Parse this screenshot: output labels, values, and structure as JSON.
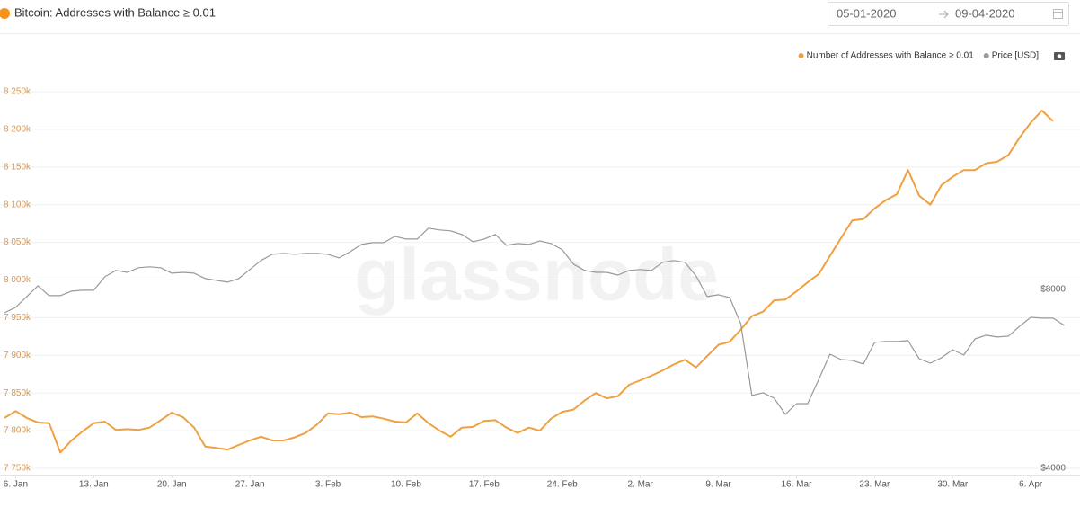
{
  "chart_data": {
    "type": "line",
    "title": "Bitcoin: Addresses with Balance ≥ 0.01",
    "date_from": "05-01-2020",
    "date_to": "09-04-2020",
    "watermark": "glassnode",
    "categories": [
      null,
      "6. Jan",
      null,
      null,
      null,
      null,
      null,
      null,
      "13. Jan",
      null,
      null,
      null,
      null,
      null,
      null,
      "20. Jan",
      null,
      null,
      null,
      null,
      null,
      null,
      "27. Jan",
      null,
      null,
      null,
      null,
      null,
      null,
      "3. Feb",
      null,
      null,
      null,
      null,
      null,
      null,
      "10. Feb",
      null,
      null,
      null,
      null,
      null,
      null,
      "17. Feb",
      null,
      null,
      null,
      null,
      null,
      null,
      "24. Feb",
      null,
      null,
      null,
      null,
      null,
      null,
      "2. Mar",
      null,
      null,
      null,
      null,
      null,
      null,
      "9. Mar",
      null,
      null,
      null,
      null,
      null,
      null,
      "16. Mar",
      null,
      null,
      null,
      null,
      null,
      null,
      "23. Mar",
      null,
      null,
      null,
      null,
      null,
      null,
      "30. Mar",
      null,
      null,
      null,
      null,
      null,
      null,
      "6. Apr",
      null,
      null,
      null
    ],
    "series": [
      {
        "name": "Number of Addresses with Balance ≥ 0.01",
        "color": "#f0a040",
        "axis": "y",
        "values": [
          7817000,
          7826000,
          7817000,
          7811000,
          7810000,
          7771000,
          7787000,
          7799000,
          7810000,
          7812000,
          7801000,
          7802000,
          7801000,
          7804000,
          7814000,
          7824000,
          7818000,
          7804000,
          7779000,
          7777000,
          7775000,
          7781000,
          7787000,
          7792000,
          7787000,
          7787000,
          7791000,
          7797000,
          7808000,
          7823000,
          7822000,
          7824000,
          7818000,
          7819000,
          7816000,
          7812000,
          7811000,
          7823000,
          7810000,
          7800000,
          7792000,
          7804000,
          7805000,
          7813000,
          7814000,
          7804000,
          7797000,
          7804000,
          7800000,
          7816000,
          7825000,
          7828000,
          7840000,
          7850000,
          7843000,
          7846000,
          7861000,
          7867000,
          7873000,
          7880000,
          7888000,
          7894000,
          7884000,
          7899000,
          7914000,
          7918000,
          7934000,
          7952000,
          7958000,
          7973000,
          7974000,
          7985000,
          7997000,
          8008000,
          8032000,
          8056000,
          8079000,
          8081000,
          8095000,
          8106000,
          8114000,
          8146000,
          8112000,
          8100000,
          8126000,
          8137000,
          8146000,
          8146000,
          8155000,
          8157000,
          8166000,
          8189000,
          8209000,
          8225000,
          8211000,
          null
        ]
      },
      {
        "name": "Price [USD]",
        "color": "#999999",
        "axis": "y2",
        "values": [
          7305,
          7461,
          7781,
          8112,
          7808,
          7808,
          7945,
          7972,
          7972,
          8399,
          8609,
          8545,
          8699,
          8729,
          8699,
          8516,
          8545,
          8516,
          8340,
          8283,
          8225,
          8340,
          8639,
          8944,
          9163,
          9195,
          9163,
          9195,
          9195,
          9163,
          9037,
          9260,
          9521,
          9588,
          9588,
          9824,
          9721,
          9721,
          10140,
          10069,
          10034,
          9895,
          9622,
          9721,
          9895,
          9488,
          9555,
          9521,
          9654,
          9555,
          9325,
          8821,
          8609,
          8545,
          8545,
          8456,
          8609,
          8639,
          8609,
          8882,
          8944,
          8882,
          8427,
          7781,
          7834,
          7752,
          7008,
          5304,
          5360,
          5248,
          4931,
          5139,
          5139,
          5646,
          6224,
          6096,
          6076,
          5991,
          6515,
          6537,
          6537,
          6561,
          6117,
          6012,
          6139,
          6333,
          6203,
          6604,
          6698,
          6651,
          6676,
          6935,
          7180,
          7156,
          7156,
          6960
        ]
      }
    ],
    "ylim": [
      7750000,
      8250000
    ],
    "yticks": [
      {
        "value": 7750000,
        "label": "7 750k"
      },
      {
        "value": 7800000,
        "label": "7 800k"
      },
      {
        "value": 7850000,
        "label": "7 850k"
      },
      {
        "value": 7900000,
        "label": "7 900k"
      },
      {
        "value": 7950000,
        "label": "7 950k"
      },
      {
        "value": 8000000,
        "label": "8 000k"
      },
      {
        "value": 8050000,
        "label": "8 050k"
      },
      {
        "value": 8100000,
        "label": "8 100k"
      },
      {
        "value": 8150000,
        "label": "8 150k"
      },
      {
        "value": 8200000,
        "label": "8 200k"
      },
      {
        "value": 8250000,
        "label": "8 250k"
      }
    ],
    "y2lim": [
      4000,
      17200
    ],
    "y2ticks": [
      {
        "value": 4000,
        "label": "$4000"
      },
      {
        "value": 8000,
        "label": "$8000"
      }
    ],
    "y2log": true,
    "grid": true,
    "legend": "top-right"
  }
}
